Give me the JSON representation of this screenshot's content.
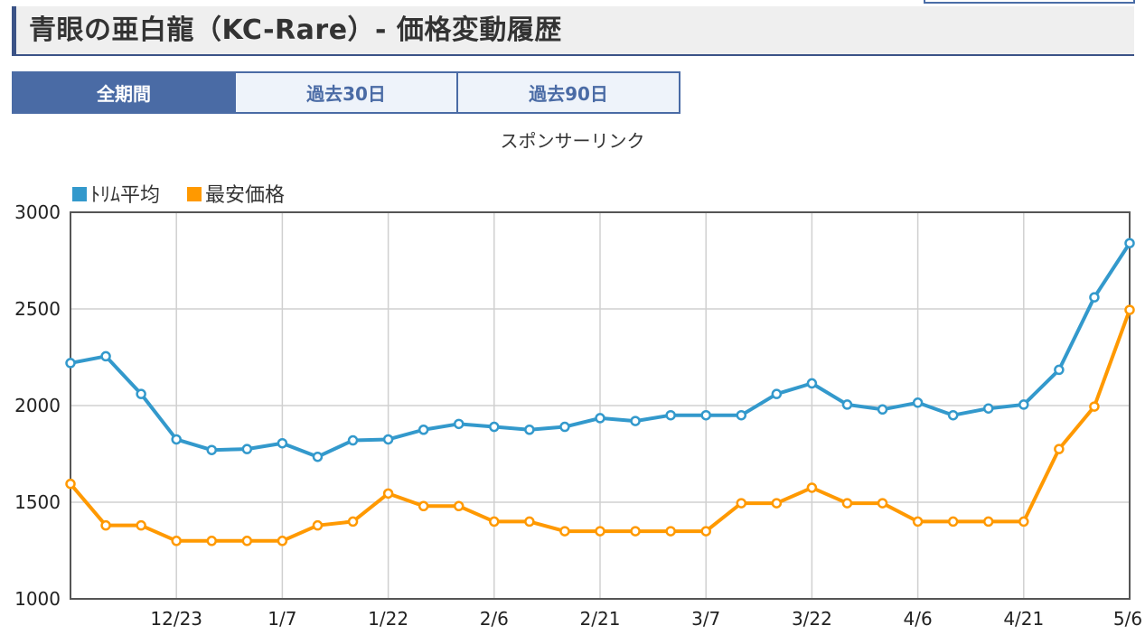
{
  "page": {
    "title": "青眼の亜白龍（KC-Rare）- 価格変動履歴",
    "sponsor_text": "スポンサーリンク"
  },
  "tabs": [
    {
      "label": "全期間",
      "active": true
    },
    {
      "label": "過去30日",
      "active": false
    },
    {
      "label": "過去90日",
      "active": false
    }
  ],
  "colors": {
    "accent": "#3b5387",
    "tab_active": "#4a6ba5",
    "series_avg": "#3399cc",
    "series_min": "#ff9900"
  },
  "chart_data": {
    "type": "line",
    "title": "",
    "xlabel": "",
    "ylabel": "",
    "ylim": [
      1000,
      3000
    ],
    "yticks": [
      1000,
      1500,
      2000,
      2500,
      3000
    ],
    "x_count": 31,
    "x_tick_labels": [
      {
        "index": 3,
        "label": "12/23"
      },
      {
        "index": 6,
        "label": "1/7"
      },
      {
        "index": 9,
        "label": "1/22"
      },
      {
        "index": 12,
        "label": "2/6"
      },
      {
        "index": 15,
        "label": "2/21"
      },
      {
        "index": 18,
        "label": "3/7"
      },
      {
        "index": 21,
        "label": "3/22"
      },
      {
        "index": 24,
        "label": "4/6"
      },
      {
        "index": 27,
        "label": "4/21"
      },
      {
        "index": 30,
        "label": "5/6"
      }
    ],
    "grid": true,
    "legend_position": "top-left",
    "series": [
      {
        "name": "ﾄﾘﾑ平均",
        "color": "#3399cc",
        "values": [
          2220,
          2255,
          2060,
          1825,
          1770,
          1775,
          1805,
          1735,
          1820,
          1825,
          1875,
          1905,
          1890,
          1875,
          1890,
          1935,
          1920,
          1950,
          1950,
          1950,
          2060,
          2115,
          2005,
          1980,
          2015,
          1950,
          1985,
          2005,
          2185,
          2560,
          2840
        ]
      },
      {
        "name": "最安価格",
        "color": "#ff9900",
        "values": [
          1595,
          1380,
          1380,
          1300,
          1300,
          1300,
          1300,
          1380,
          1400,
          1545,
          1480,
          1480,
          1400,
          1400,
          1350,
          1350,
          1350,
          1350,
          1350,
          1495,
          1495,
          1575,
          1495,
          1495,
          1400,
          1400,
          1400,
          1400,
          1775,
          1995,
          2495
        ]
      }
    ]
  }
}
